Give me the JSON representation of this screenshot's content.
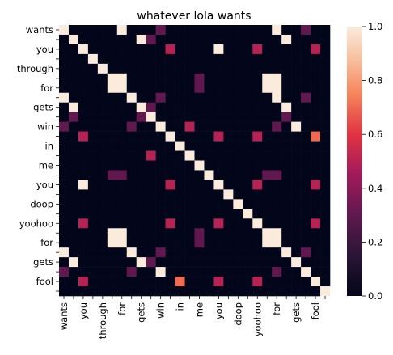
{
  "chart_data": {
    "type": "heatmap",
    "title": "whatever lola wants",
    "xlabel": "",
    "ylabel": "",
    "row_labels": [
      "wants",
      "",
      "you",
      "",
      "through",
      "",
      "for",
      "",
      "gets",
      "",
      "win",
      "",
      "in",
      "",
      "me",
      "",
      "you",
      "",
      "doop",
      "",
      "yoohoo",
      "",
      "for",
      "",
      "gets",
      "",
      "fool",
      ""
    ],
    "col_labels": [
      "wants",
      "",
      "you",
      "",
      "through",
      "",
      "for",
      "",
      "gets",
      "",
      "win",
      "",
      "in",
      "",
      "me",
      "",
      "you",
      "",
      "doop",
      "",
      "yoohoo",
      "",
      "for",
      "",
      "gets",
      "",
      "fool",
      ""
    ],
    "colorbar": {
      "min": 0.0,
      "max": 1.0,
      "ticks": [
        "0.0",
        "0.2",
        "0.4",
        "0.6",
        "0.8",
        "1.0"
      ]
    },
    "colormap": "rocket",
    "values": [
      [
        1,
        0,
        0,
        0,
        0,
        0,
        1,
        0,
        0,
        0,
        0.3,
        0,
        0,
        0,
        0,
        0,
        0,
        0,
        0,
        0,
        0,
        0,
        1,
        0,
        0,
        0.3,
        0,
        0
      ],
      [
        0,
        1,
        0,
        0,
        0,
        0,
        0,
        0,
        1,
        0.3,
        0,
        0,
        0,
        0,
        0,
        0,
        0,
        0,
        0,
        0,
        0,
        0,
        0,
        1,
        0,
        0,
        0,
        0
      ],
      [
        0,
        0,
        1,
        0,
        0,
        0,
        0,
        0,
        0,
        0,
        0,
        0.5,
        0,
        0,
        0,
        0,
        1,
        0,
        0,
        0,
        0.5,
        0,
        0,
        0,
        0,
        0,
        0.5,
        0
      ],
      [
        0,
        0,
        0,
        1,
        0,
        0,
        0,
        0,
        0,
        0,
        0,
        0,
        0,
        0,
        0,
        0,
        0,
        0,
        0,
        0,
        0,
        0,
        0,
        0,
        0,
        0,
        0,
        0
      ],
      [
        0,
        0,
        0,
        0,
        1,
        0,
        0,
        0,
        0,
        0,
        0,
        0,
        0,
        0,
        0,
        0,
        0,
        0,
        0,
        0,
        0,
        0,
        0,
        0,
        0,
        0,
        0,
        0
      ],
      [
        0,
        0,
        0,
        0,
        0,
        1,
        1,
        0,
        0,
        0,
        0,
        0,
        0,
        0,
        0.3,
        0,
        0,
        0,
        0,
        0,
        0,
        1,
        1,
        0,
        0,
        0,
        0,
        0
      ],
      [
        0,
        0,
        0,
        0,
        0,
        1,
        1,
        0,
        0,
        0,
        0,
        0,
        0,
        0,
        0.3,
        0,
        0,
        0,
        0,
        0,
        0,
        1,
        1,
        0,
        0,
        0,
        0,
        0
      ],
      [
        1,
        0,
        0,
        0,
        0,
        0,
        0,
        1,
        0,
        0,
        0.3,
        0,
        0,
        0,
        0,
        0,
        0,
        0,
        0,
        0,
        0,
        0,
        1,
        0,
        0,
        0.3,
        0,
        0
      ],
      [
        0,
        1,
        0,
        0,
        0,
        0,
        0,
        0,
        1,
        0.3,
        0,
        0,
        0,
        0,
        0,
        0,
        0,
        0,
        0,
        0,
        0,
        0,
        0,
        1,
        0,
        0,
        0,
        0
      ],
      [
        0,
        0.3,
        0,
        0,
        0,
        0,
        0,
        0,
        0.3,
        1,
        0,
        0,
        0,
        0,
        0,
        0,
        0,
        0,
        0,
        0,
        0,
        0,
        0,
        0.3,
        0,
        0,
        0,
        0
      ],
      [
        0.3,
        0,
        0,
        0,
        0,
        0,
        0,
        0.3,
        0,
        0,
        1,
        0,
        0,
        0.5,
        0,
        0,
        0,
        0,
        0,
        0,
        0,
        0,
        0.3,
        0,
        1,
        0,
        0,
        0
      ],
      [
        0,
        0,
        0.5,
        0,
        0,
        0,
        0,
        0,
        0,
        0,
        0,
        1,
        0,
        0,
        0,
        0,
        0.5,
        0,
        0,
        0,
        0.5,
        0,
        0,
        0,
        0,
        0,
        0.7,
        0
      ],
      [
        0,
        0,
        0,
        0,
        0,
        0,
        0,
        0,
        0,
        0,
        0,
        0,
        1,
        0,
        0,
        0,
        0,
        0,
        0,
        0,
        0,
        0,
        0,
        0,
        0,
        0,
        0,
        0
      ],
      [
        0,
        0,
        0,
        0,
        0,
        0,
        0,
        0,
        0,
        0.5,
        0,
        0,
        0,
        1,
        0,
        0,
        0,
        0,
        0,
        0,
        0,
        0,
        0,
        0,
        0,
        0,
        0,
        0
      ],
      [
        0,
        0,
        0,
        0,
        0,
        0,
        0,
        0,
        0,
        0,
        0,
        0,
        0,
        0,
        1,
        0,
        0,
        0,
        0,
        0,
        0,
        0,
        0,
        0,
        0,
        0,
        0,
        0
      ],
      [
        0,
        0,
        0,
        0,
        0,
        0.3,
        0.3,
        0,
        0,
        0,
        0,
        0,
        0,
        0,
        0,
        1,
        0,
        0,
        0,
        0,
        0,
        0.3,
        0.3,
        0,
        0,
        0,
        0,
        0
      ],
      [
        0,
        0,
        1,
        0,
        0,
        0,
        0,
        0,
        0,
        0,
        0,
        0.5,
        0,
        0,
        0,
        0,
        1,
        0,
        0,
        0,
        0.5,
        0,
        0,
        0,
        0,
        0,
        0.5,
        0
      ],
      [
        0,
        0,
        0,
        0,
        0,
        0,
        0,
        0,
        0,
        0,
        0,
        0,
        0,
        0,
        0,
        0,
        0,
        1,
        0,
        0,
        0,
        0,
        0,
        0,
        0,
        0,
        0,
        0
      ],
      [
        0,
        0,
        0,
        0,
        0,
        0,
        0,
        0,
        0,
        0,
        0,
        0,
        0,
        0,
        0,
        0,
        0,
        0,
        1,
        0,
        0,
        0,
        0,
        0,
        0,
        0,
        0,
        0
      ],
      [
        0,
        0,
        0,
        0,
        0,
        0,
        0,
        0,
        0,
        0,
        0,
        0,
        0,
        0,
        0,
        0,
        0,
        0,
        0,
        1,
        0,
        0,
        0,
        0,
        0,
        0,
        0,
        0
      ],
      [
        0,
        0,
        0.5,
        0,
        0,
        0,
        0,
        0,
        0,
        0,
        0,
        0.5,
        0,
        0,
        0,
        0,
        0.5,
        0,
        0,
        0,
        1,
        0,
        0,
        0,
        0,
        0,
        0.5,
        0
      ],
      [
        0,
        0,
        0,
        0,
        0,
        1,
        1,
        0,
        0,
        0,
        0,
        0,
        0,
        0,
        0.3,
        0,
        0,
        0,
        0,
        0,
        0,
        1,
        1,
        0,
        0,
        0,
        0,
        0
      ],
      [
        0,
        0,
        0,
        0,
        0,
        1,
        1,
        0,
        0,
        0,
        0,
        0,
        0,
        0,
        0.3,
        0,
        0,
        0,
        0,
        0,
        0,
        1,
        1,
        0,
        0,
        0,
        0,
        0
      ],
      [
        1,
        0,
        0,
        0,
        0,
        0,
        0,
        1,
        0,
        0,
        0.3,
        0,
        0,
        0,
        0,
        0,
        0,
        0,
        0,
        0,
        0,
        0,
        0,
        1,
        0,
        0.3,
        0,
        0
      ],
      [
        0,
        1,
        0,
        0,
        0,
        0,
        0,
        0,
        1,
        0.3,
        0,
        0,
        0,
        0,
        0,
        0,
        0,
        0,
        0,
        0,
        0,
        0,
        0,
        0,
        1,
        0,
        0,
        0
      ],
      [
        0.3,
        0,
        0,
        0,
        0,
        0,
        0,
        0.3,
        0,
        0,
        1,
        0,
        0,
        0,
        0,
        0,
        0,
        0,
        0,
        0,
        0,
        0,
        0.3,
        0,
        0,
        1,
        0,
        0
      ],
      [
        0,
        0,
        0.5,
        0,
        0,
        0,
        0,
        0,
        0,
        0,
        0,
        0,
        0.7,
        0,
        0,
        0,
        0.5,
        0,
        0,
        0,
        0.5,
        0,
        0,
        0,
        0,
        0,
        1,
        0
      ],
      [
        0,
        0,
        0,
        0,
        0,
        0,
        0,
        0,
        0,
        0,
        0,
        0,
        0,
        0,
        0,
        0,
        0,
        0,
        0,
        0,
        0,
        0,
        0,
        0,
        0,
        0,
        0,
        1
      ]
    ]
  }
}
